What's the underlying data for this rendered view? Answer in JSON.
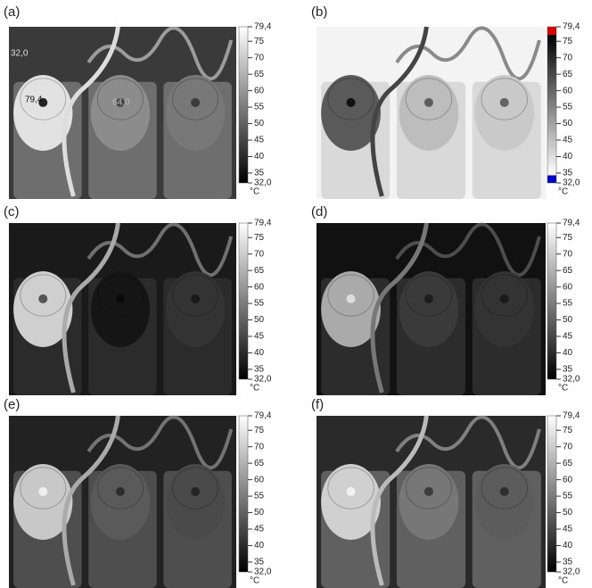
{
  "panels": [
    {
      "label": "(a)",
      "colorbar": {
        "ticks": [
          "79,4",
          "75",
          "70",
          "65",
          "60",
          "55",
          "50",
          "45",
          "40",
          "35",
          "32,0"
        ],
        "unit": "°C"
      },
      "annotations": [
        "32,0",
        "79,4",
        "64,0"
      ]
    },
    {
      "label": "(b)",
      "colorbar": {
        "ticks": [
          "79,4",
          "75",
          "70",
          "65",
          "60",
          "55",
          "50",
          "45",
          "40",
          "35",
          "32,0"
        ],
        "unit": "°C"
      }
    },
    {
      "label": "(c)",
      "colorbar": {
        "ticks": [
          "79,4",
          "75",
          "70",
          "65",
          "60",
          "55",
          "50",
          "45",
          "40",
          "35",
          "32,0"
        ],
        "unit": "°C"
      }
    },
    {
      "label": "(d)",
      "colorbar": {
        "ticks": [
          "79,4",
          "75",
          "70",
          "65",
          "60",
          "55",
          "50",
          "45",
          "40",
          "35",
          "32,0"
        ],
        "unit": "°C"
      }
    },
    {
      "label": "(e)",
      "colorbar": {
        "ticks": [
          "79,4",
          "75",
          "70",
          "65",
          "60",
          "55",
          "50",
          "45",
          "40",
          "35",
          "32,0"
        ],
        "unit": "°C"
      }
    },
    {
      "label": "(f)",
      "colorbar": {
        "ticks": [
          "79,4",
          "75",
          "70",
          "65",
          "60",
          "55",
          "50",
          "45",
          "40",
          "35",
          "32,0"
        ],
        "unit": "°C"
      }
    }
  ]
}
